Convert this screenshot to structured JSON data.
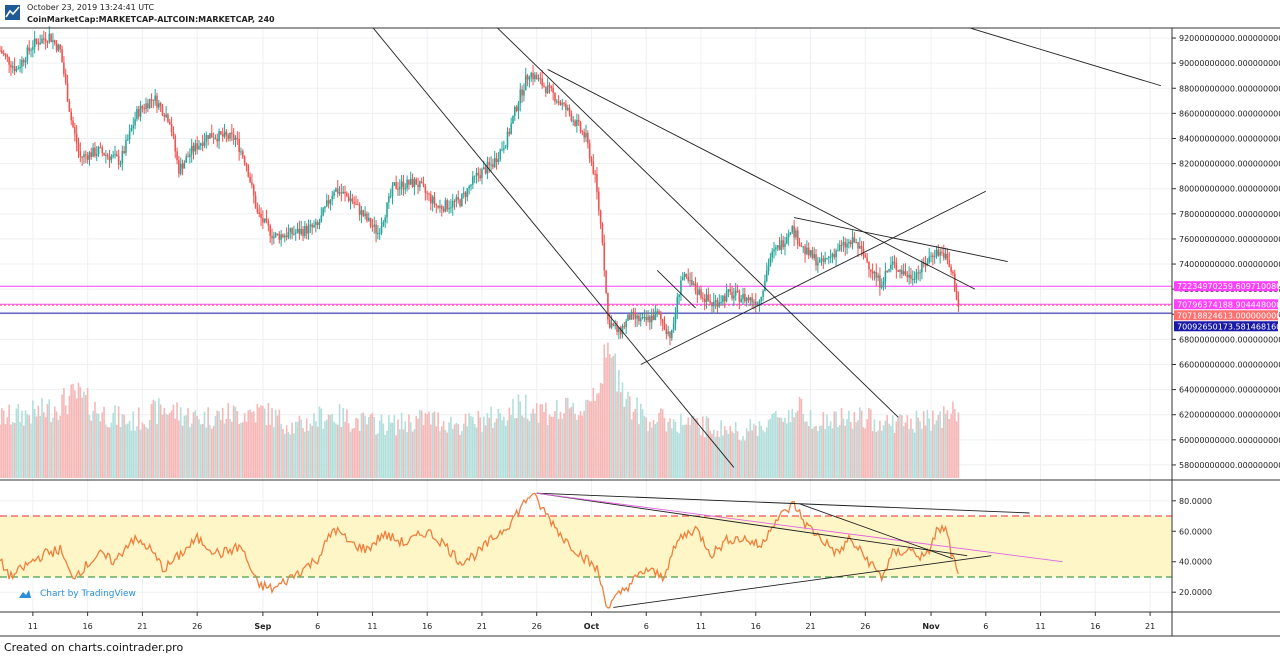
{
  "header": {
    "timestamp": "October 23, 2019 13:24:41 UTC",
    "symbol": "CoinMarketCap:MARKETCAP-ALTCOIN:MARKETCAP, 240",
    "logo_icon": "tradingview-logo-icon"
  },
  "watermark": {
    "text": "Chart by TradingView",
    "icon": "tradingview-cloud-icon"
  },
  "footer": {
    "text": "Created on charts.cointrader.pro"
  },
  "colors": {
    "up": "#26a69a",
    "down": "#ef5350",
    "volume_up": "#b2dfdb",
    "volume_down": "#f6b7b7",
    "rsi_line": "#f07f3c",
    "rsi_band": "#fff6c8",
    "badge_pink": "#ff40ff",
    "badge_blue": "#1a1aa8",
    "badge_red": "#ff6f6f",
    "trend": "#1f1f1f"
  },
  "chart_data": [
    {
      "type": "candlestick",
      "name": "",
      "y_axis_range": [
        56800000000,
        92800000000
      ],
      "y_ticks": [
        "92000000000.0000000000",
        "90000000000.0000000000",
        "88000000000.0000000000",
        "86000000000.0000000000",
        "84000000000.0000000000",
        "82000000000.0000000000",
        "80000000000.0000000000",
        "78000000000.0000000000",
        "76000000000.0000000000",
        "74000000000.0000000000",
        "72000000000.0000000000",
        "70000000000.0000000000",
        "68000000000.0000000000",
        "66000000000.0000000000",
        "64000000000.0000000000",
        "62000000000.0000000000",
        "60000000000.0000000000",
        "58000000000.0000000000"
      ],
      "y_tick_values": [
        92000000000,
        90000000000,
        88000000000,
        86000000000,
        84000000000,
        82000000000,
        80000000000,
        78000000000,
        76000000000,
        74000000000,
        72000000000,
        70000000000,
        68000000000,
        66000000000,
        64000000000,
        62000000000,
        60000000000,
        58000000000
      ],
      "x_ticks": [
        "11",
        "16",
        "21",
        "26",
        "Sep",
        "6",
        "11",
        "16",
        "21",
        "26",
        "Oct",
        "6",
        "11",
        "16",
        "21",
        "26",
        "Nov",
        "6",
        "11",
        "16",
        "21"
      ],
      "x_tick_days": [
        11,
        16,
        21,
        26,
        32,
        37,
        42,
        47,
        52,
        57,
        62,
        67,
        72,
        77,
        82,
        87,
        93,
        98,
        103,
        108,
        113
      ],
      "x_axis_range_days": [
        8,
        115
      ],
      "x_axis_note": "days counted from Aug 1, 2019 (Sep 1 = 32, Oct 1 = 62, Nov 1 = 93)",
      "close_anchors": [
        [
          8,
          91000000000
        ],
        [
          9.5,
          89500000000
        ],
        [
          11,
          91500000000
        ],
        [
          12.5,
          92200000000
        ],
        [
          13.5,
          91000000000
        ],
        [
          14.5,
          85500000000
        ],
        [
          15.3,
          82500000000
        ],
        [
          17,
          83000000000
        ],
        [
          19,
          82200000000
        ],
        [
          20.5,
          86000000000
        ],
        [
          22,
          87300000000
        ],
        [
          23.5,
          85500000000
        ],
        [
          24.3,
          81500000000
        ],
        [
          25.5,
          83000000000
        ],
        [
          27,
          84300000000
        ],
        [
          29.5,
          84000000000
        ],
        [
          30.5,
          82000000000
        ],
        [
          31.5,
          78000000000
        ],
        [
          33,
          76200000000
        ],
        [
          35,
          76500000000
        ],
        [
          37,
          77000000000
        ],
        [
          38.5,
          80000000000
        ],
        [
          40,
          79200000000
        ],
        [
          41.5,
          77500000000
        ],
        [
          42.5,
          76500000000
        ],
        [
          44,
          80200000000
        ],
        [
          46,
          80500000000
        ],
        [
          48,
          78500000000
        ],
        [
          50,
          79000000000
        ],
        [
          51.5,
          81000000000
        ],
        [
          53,
          82000000000
        ],
        [
          54.3,
          84000000000
        ],
        [
          55.3,
          87000000000
        ],
        [
          56.3,
          89300000000
        ],
        [
          57.3,
          88500000000
        ],
        [
          58.5,
          87500000000
        ],
        [
          60,
          86000000000
        ],
        [
          61.5,
          84000000000
        ],
        [
          62.3,
          81000000000
        ],
        [
          63,
          76000000000
        ],
        [
          63.5,
          69500000000
        ],
        [
          64.5,
          68500000000
        ],
        [
          65.5,
          69800000000
        ],
        [
          66.8,
          69400000000
        ],
        [
          68,
          70000000000
        ],
        [
          69.3,
          68200000000
        ],
        [
          70.2,
          73000000000
        ],
        [
          71.5,
          72000000000
        ],
        [
          73,
          70800000000
        ],
        [
          74.5,
          71600000000
        ],
        [
          76,
          71300000000
        ],
        [
          77.3,
          71000000000
        ],
        [
          78.3,
          74500000000
        ],
        [
          79.5,
          75800000000
        ],
        [
          80.2,
          77000000000
        ],
        [
          81.5,
          75000000000
        ],
        [
          83,
          74000000000
        ],
        [
          84.5,
          75200000000
        ],
        [
          86,
          75800000000
        ],
        [
          87,
          74500000000
        ],
        [
          88.3,
          72500000000
        ],
        [
          89.5,
          74000000000
        ],
        [
          91,
          73000000000
        ],
        [
          92,
          73500000000
        ],
        [
          93.3,
          75000000000
        ],
        [
          94.2,
          74800000000
        ],
        [
          95,
          73000000000
        ],
        [
          95.5,
          70600000000
        ]
      ],
      "candles_per_day": 6,
      "volume_anchors": [
        [
          8,
          0.45
        ],
        [
          12,
          0.5
        ],
        [
          15,
          0.62
        ],
        [
          17,
          0.5
        ],
        [
          20,
          0.42
        ],
        [
          23,
          0.52
        ],
        [
          26,
          0.45
        ],
        [
          29,
          0.48
        ],
        [
          32,
          0.5
        ],
        [
          35,
          0.38
        ],
        [
          38,
          0.48
        ],
        [
          41,
          0.42
        ],
        [
          44,
          0.4
        ],
        [
          47,
          0.45
        ],
        [
          50,
          0.4
        ],
        [
          53,
          0.45
        ],
        [
          56,
          0.55
        ],
        [
          58,
          0.5
        ],
        [
          61,
          0.5
        ],
        [
          62.5,
          0.7
        ],
        [
          63.5,
          0.9
        ],
        [
          64.5,
          0.8
        ],
        [
          65.5,
          0.55
        ],
        [
          67,
          0.45
        ],
        [
          70,
          0.42
        ],
        [
          73,
          0.38
        ],
        [
          76,
          0.35
        ],
        [
          79,
          0.45
        ],
        [
          81,
          0.52
        ],
        [
          83,
          0.42
        ],
        [
          86,
          0.45
        ],
        [
          89,
          0.42
        ],
        [
          92,
          0.42
        ],
        [
          95.5,
          0.5
        ]
      ],
      "horizontal_lines": [
        {
          "value": 72234970259.60971,
          "color": "#ff40ff"
        },
        {
          "value": 70796374188.90445,
          "color": "#ff40ff"
        },
        {
          "value": 70718824613.0,
          "color": "#ff6f6f"
        },
        {
          "value": 70092650173.58147,
          "color": "#1a1aa8"
        }
      ],
      "price_badges": [
        {
          "text": "72234970259.6097100800",
          "value": 72234970259.60971,
          "color": "#ff40ff"
        },
        {
          "text": "70796374188.9044480000",
          "value": 70796374188.90445,
          "color": "#ff40ff"
        },
        {
          "text": "70718824613.0000000000",
          "value": 70718824613.0,
          "color": "#ff6f6f"
        },
        {
          "text": "70092650173.5814681600",
          "value": 70092650173.58147,
          "color": "#1a1aa8"
        }
      ],
      "trendlines": [
        {
          "from": [
            40,
            95000000000
          ],
          "to": [
            75,
            57800000000
          ]
        },
        {
          "from": [
            52,
            94000000000
          ],
          "to": [
            90,
            61800000000
          ]
        },
        {
          "from": [
            92,
            94000000000
          ],
          "to": [
            114,
            88200000000
          ]
        },
        {
          "from": [
            68,
            73500000000
          ],
          "to": [
            71.5,
            70500000000
          ]
        },
        {
          "from": [
            66.5,
            66000000000
          ],
          "to": [
            98,
            79800000000
          ]
        },
        {
          "from": [
            80.5,
            77700000000
          ],
          "to": [
            100,
            74200000000
          ]
        },
        {
          "from": [
            58,
            89500000000
          ],
          "to": [
            97,
            72000000000
          ]
        }
      ]
    },
    {
      "type": "line",
      "name": "",
      "y_axis_range": [
        7,
        93
      ],
      "y_ticks": [
        "80.0000",
        "60.0000",
        "40.0000",
        "20.0000"
      ],
      "y_tick_values": [
        80,
        60,
        40,
        20
      ],
      "band": [
        30,
        70
      ],
      "dashed_levels": [
        {
          "value": 70,
          "color": "#ef5350"
        },
        {
          "value": 30,
          "color": "#43a047"
        }
      ],
      "rsi_anchors": [
        [
          8,
          40
        ],
        [
          9,
          30
        ],
        [
          10.5,
          38
        ],
        [
          12,
          45
        ],
        [
          13.5,
          48
        ],
        [
          14.5,
          30
        ],
        [
          15.5,
          35
        ],
        [
          17,
          45
        ],
        [
          18.5,
          40
        ],
        [
          20,
          55
        ],
        [
          21.5,
          50
        ],
        [
          23,
          35
        ],
        [
          24.5,
          45
        ],
        [
          26,
          55
        ],
        [
          28,
          45
        ],
        [
          30,
          50
        ],
        [
          31.5,
          25
        ],
        [
          33,
          22
        ],
        [
          35,
          32
        ],
        [
          37,
          42
        ],
        [
          38.5,
          62
        ],
        [
          40,
          52
        ],
        [
          41.5,
          48
        ],
        [
          43,
          58
        ],
        [
          45,
          52
        ],
        [
          47,
          60
        ],
        [
          48.5,
          52
        ],
        [
          50,
          40
        ],
        [
          51.5,
          45
        ],
        [
          53,
          55
        ],
        [
          54.5,
          65
        ],
        [
          56.5,
          85
        ],
        [
          57.8,
          72
        ],
        [
          59.5,
          55
        ],
        [
          61,
          45
        ],
        [
          62.5,
          35
        ],
        [
          63.5,
          10
        ],
        [
          65,
          22
        ],
        [
          67,
          35
        ],
        [
          68.5,
          30
        ],
        [
          70,
          55
        ],
        [
          71.5,
          62
        ],
        [
          73,
          45
        ],
        [
          74.5,
          55
        ],
        [
          76,
          55
        ],
        [
          77.5,
          50
        ],
        [
          78.5,
          65
        ],
        [
          80.5,
          78
        ],
        [
          81.5,
          65
        ],
        [
          83,
          55
        ],
        [
          84.5,
          45
        ],
        [
          85.5,
          55
        ],
        [
          87,
          43
        ],
        [
          88.5,
          30
        ],
        [
          89.5,
          45
        ],
        [
          91,
          48
        ],
        [
          92.5,
          42
        ],
        [
          93.5,
          60
        ],
        [
          94.3,
          62
        ],
        [
          95,
          42
        ],
        [
          95.6,
          28
        ]
      ],
      "trendlines": [
        {
          "from": [
            57,
            85
          ],
          "to": [
            102,
            72
          ]
        },
        {
          "from": [
            57,
            85
          ],
          "to": [
            96.3,
            44
          ]
        },
        {
          "from": [
            57,
            85
          ],
          "to": [
            105,
            40
          ]
        },
        {
          "from": [
            64,
            10
          ],
          "to": [
            98.5,
            44
          ]
        },
        {
          "from": [
            81,
            78
          ],
          "to": [
            95,
            42
          ]
        }
      ]
    }
  ]
}
